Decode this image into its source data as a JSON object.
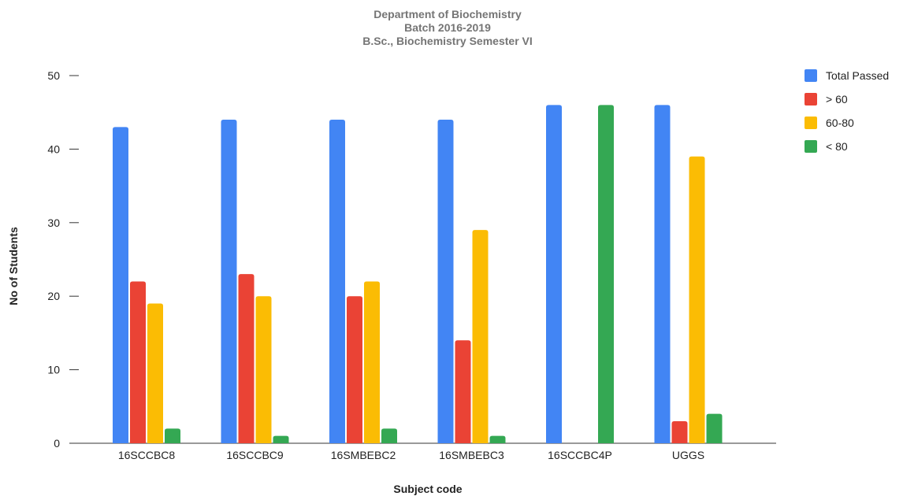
{
  "chart_data": {
    "type": "bar",
    "title": [
      "Department of Biochemistry",
      "Batch 2016-2019",
      "B.Sc., Biochemistry Semester VI"
    ],
    "xlabel": "Subject code",
    "ylabel": "No of Students",
    "categories": [
      "16SCCBC8",
      "16SCCBC9",
      "16SMBEBC2",
      "16SMBEBC3",
      "16SCCBC4P",
      "UGGS"
    ],
    "ylim": [
      0,
      50
    ],
    "yticks": [
      0,
      10,
      20,
      30,
      40,
      50
    ],
    "grid": false,
    "legend_position": "right",
    "series": [
      {
        "name": "Total Passed",
        "color": "#4285F4",
        "values": [
          43,
          44,
          44,
          44,
          46,
          46
        ]
      },
      {
        "name": "> 60",
        "color": "#EA4335",
        "values": [
          22,
          23,
          20,
          14,
          0,
          3
        ]
      },
      {
        "name": "60-80",
        "color": "#FBBC04",
        "values": [
          19,
          20,
          22,
          29,
          0,
          39
        ]
      },
      {
        "name": "< 80",
        "color": "#34A853",
        "values": [
          2,
          1,
          2,
          1,
          46,
          4
        ]
      }
    ]
  }
}
